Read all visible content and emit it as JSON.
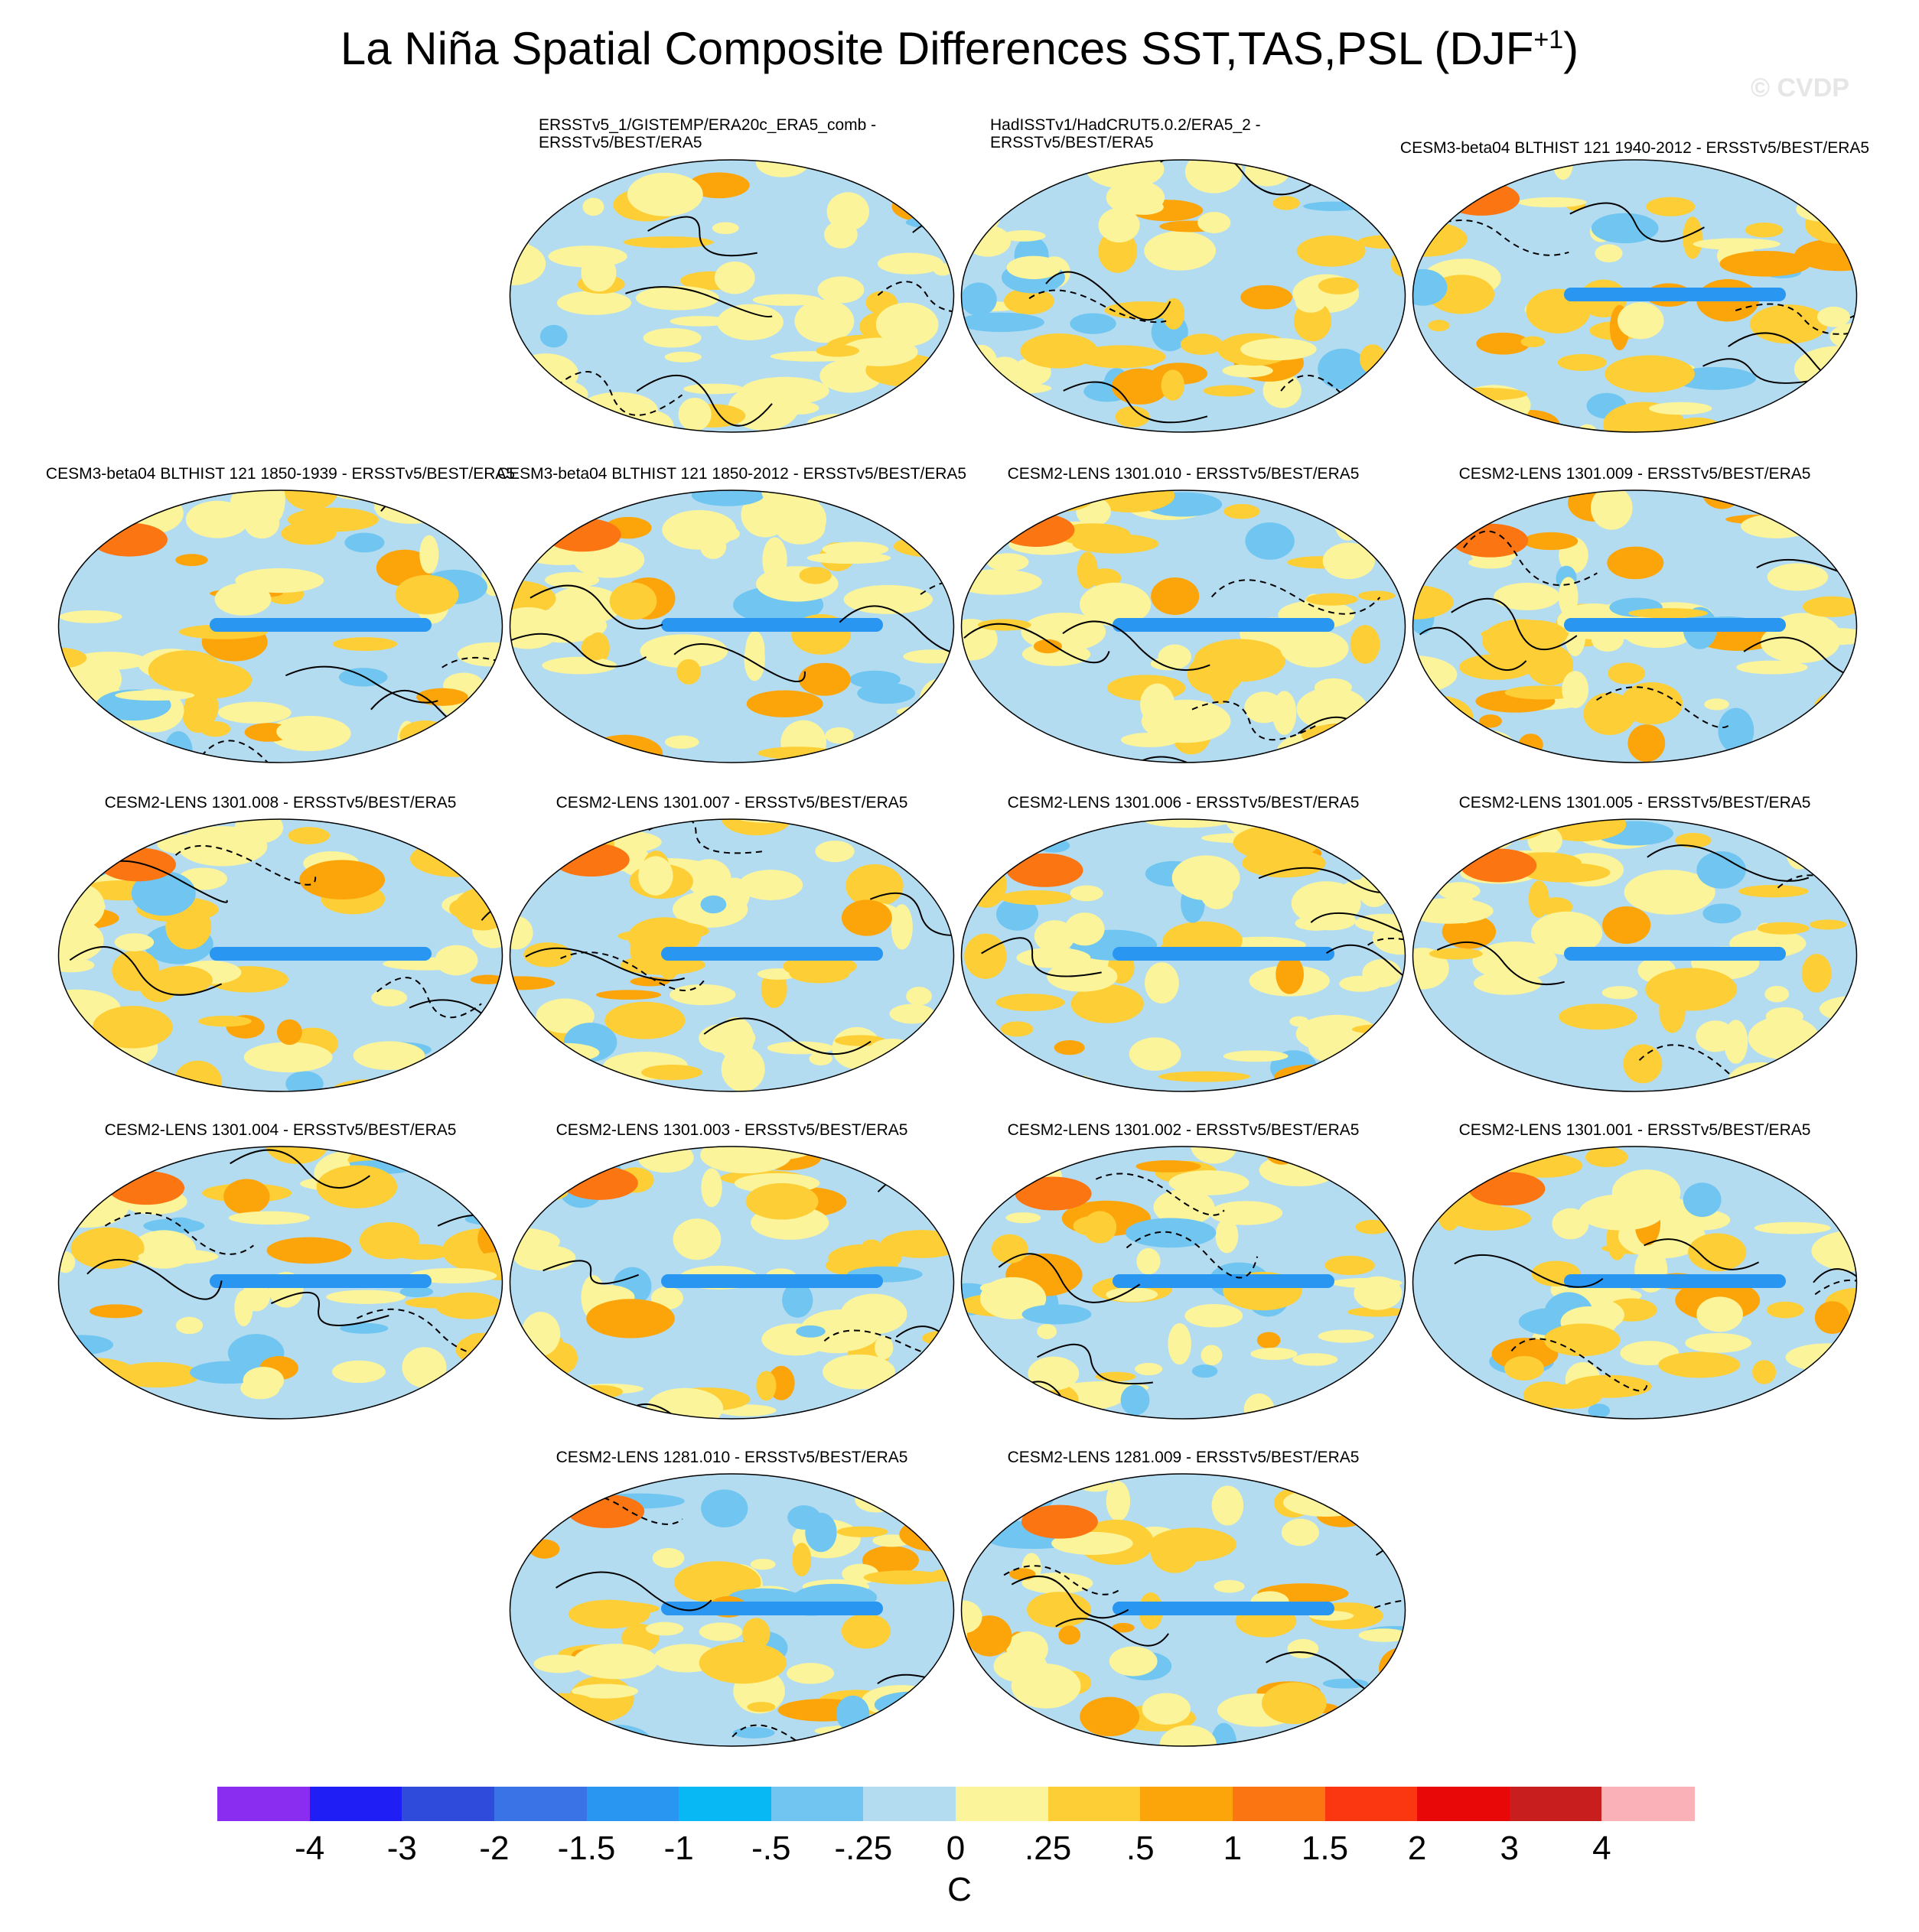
{
  "title": {
    "main": "La Niña Spatial Composite Differences SST,TAS,PSL (DJF",
    "superscript": "+1",
    "close": ")"
  },
  "watermark": "© CVDP",
  "panels": [
    {
      "line1": "ERSSTv5_1/GISTEMP/ERA20c_ERA5_comb -",
      "line2": "ERSSTv5/BEST/ERA5"
    },
    {
      "line1": "HadISSTv1/HadCRUT5.0.2/ERA5_2 -",
      "line2": "ERSSTv5/BEST/ERA5"
    },
    {
      "line1": "CESM3-beta04 BLTHIST 121 1940-2012 - ERSSTv5/BEST/ERA5",
      "line2": ""
    },
    {
      "line1": "CESM3-beta04 BLTHIST 121 1850-1939 - ERSSTv5/BEST/ERA5",
      "line2": ""
    },
    {
      "line1": "CESM3-beta04 BLTHIST 121 1850-2012 - ERSSTv5/BEST/ERA5",
      "line2": ""
    },
    {
      "line1": "CESM2-LENS 1301.010 - ERSSTv5/BEST/ERA5",
      "line2": ""
    },
    {
      "line1": "CESM2-LENS 1301.009 - ERSSTv5/BEST/ERA5",
      "line2": ""
    },
    {
      "line1": "CESM2-LENS 1301.008 - ERSSTv5/BEST/ERA5",
      "line2": ""
    },
    {
      "line1": "CESM2-LENS 1301.007 - ERSSTv5/BEST/ERA5",
      "line2": ""
    },
    {
      "line1": "CESM2-LENS 1301.006 - ERSSTv5/BEST/ERA5",
      "line2": ""
    },
    {
      "line1": "CESM2-LENS 1301.005 - ERSSTv5/BEST/ERA5",
      "line2": ""
    },
    {
      "line1": "CESM2-LENS 1301.004 - ERSSTv5/BEST/ERA5",
      "line2": ""
    },
    {
      "line1": "CESM2-LENS 1301.003 - ERSSTv5/BEST/ERA5",
      "line2": ""
    },
    {
      "line1": "CESM2-LENS 1301.002 - ERSSTv5/BEST/ERA5",
      "line2": ""
    },
    {
      "line1": "CESM2-LENS 1301.001 - ERSSTv5/BEST/ERA5",
      "line2": ""
    },
    {
      "line1": "CESM2-LENS 1281.010 - ERSSTv5/BEST/ERA5",
      "line2": ""
    },
    {
      "line1": "CESM2-LENS 1281.009 - ERSSTv5/BEST/ERA5",
      "line2": ""
    }
  ],
  "colorbar": {
    "colors": [
      "#8a2df0",
      "#1e1ef5",
      "#2e4bdc",
      "#3a73e6",
      "#2996f2",
      "#08b8f5",
      "#70c6f0",
      "#b4dcf1",
      "#fbf49a",
      "#fdce35",
      "#fca50a",
      "#fb7512",
      "#fb3712",
      "#e80808",
      "#c81e1e",
      "#fab2b8"
    ],
    "labels": [
      "-4",
      "-3",
      "-2",
      "-1.5",
      "-1",
      "-.5",
      "-.25",
      "0",
      ".25",
      ".5",
      "1",
      "1.5",
      "2",
      "3",
      "4"
    ],
    "units": "C"
  }
}
